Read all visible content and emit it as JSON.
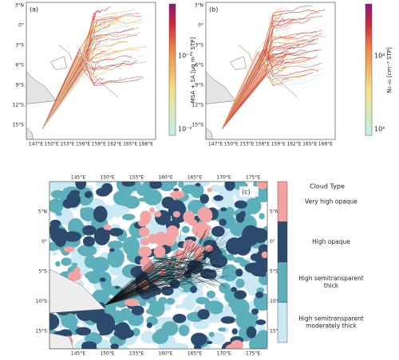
{
  "panels": [
    {
      "label": "(a)",
      "lat_labels": [
        "3°N",
        "0°",
        "3°S",
        "6°S",
        "9°S",
        "12°S",
        "15°S"
      ],
      "lon_labels": [
        "147°E",
        "150°E",
        "153°E",
        "156°E",
        "159°E",
        "162°E",
        "165°E",
        "168°E"
      ],
      "colorbar": {
        "label": "MSA + SA [μg m⁻³ STP]",
        "ticks": [
          "10⁻¹",
          "10⁻²"
        ]
      }
    },
    {
      "label": "(b)",
      "lat_labels": [
        "3°N",
        "0°",
        "3°S",
        "6°S",
        "9°S",
        "12°S",
        "15°S"
      ],
      "lon_labels": [
        "147°E",
        "150°E",
        "153°E",
        "156°E",
        "159°E",
        "162°E",
        "165°E",
        "168°E"
      ],
      "colorbar": {
        "label": "N₂₋₆₀ [cm⁻³ STP]",
        "ticks": [
          "10⁴",
          "10³"
        ]
      }
    },
    {
      "label": "(c)",
      "lat_labels": [
        "5°N",
        "0°",
        "5°S",
        "10°S",
        "15°S"
      ],
      "lon_labels": [
        "145°E",
        "150°E",
        "155°E",
        "160°E",
        "165°E",
        "170°E",
        "175°E"
      ],
      "cloud_types": {
        "title": "Cloud Type",
        "items": [
          {
            "label": "Very high opaque",
            "color": "#f2a3a3"
          },
          {
            "label": "High opaque",
            "color": "#2c4a6c"
          },
          {
            "label": "High semitransparent thick",
            "color": "#5eafbc"
          },
          {
            "label": "High semitransparent moderately thick",
            "color": "#cbe9f3"
          }
        ]
      }
    }
  ]
}
